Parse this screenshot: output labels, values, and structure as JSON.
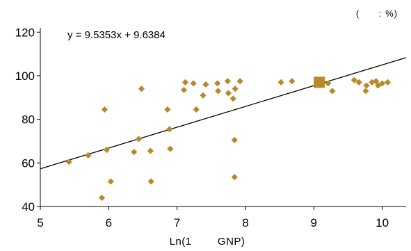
{
  "chart_data": {
    "type": "scatter",
    "title": "",
    "unit_label": "(      : %)",
    "xlabel": "Ln(1        GNP)",
    "ylabel": "",
    "xlim": [
      5,
      10.35
    ],
    "ylim": [
      40,
      122
    ],
    "x_ticks": [
      "5",
      "6",
      "7",
      "8",
      "9",
      "10"
    ],
    "y_ticks": [
      "40",
      "60",
      "80",
      "100",
      "120"
    ],
    "grid": false,
    "legend": "none",
    "marker_color": "#B8892A",
    "trendline": {
      "equation_label": "y = 9.5353x + 9.6384",
      "slope": 9.5353,
      "intercept": 9.6384,
      "x_range": [
        5,
        10.35
      ],
      "color": "#000000"
    },
    "series": [
      {
        "marker": "diamond",
        "points": [
          [
            5.42,
            60.5
          ],
          [
            5.7,
            63.5
          ],
          [
            5.9,
            44.0
          ],
          [
            5.94,
            84.5
          ],
          [
            5.97,
            66.0
          ],
          [
            6.03,
            51.5
          ],
          [
            6.37,
            65.0
          ],
          [
            6.44,
            71.0
          ],
          [
            6.48,
            94.0
          ],
          [
            6.61,
            65.5
          ],
          [
            6.62,
            51.5
          ],
          [
            6.86,
            84.5
          ],
          [
            6.89,
            75.5
          ],
          [
            6.9,
            66.5
          ],
          [
            7.12,
            97.0
          ],
          [
            7.1,
            93.5
          ],
          [
            7.24,
            96.5
          ],
          [
            7.28,
            84.5
          ],
          [
            7.38,
            91.0
          ],
          [
            7.42,
            96.0
          ],
          [
            7.59,
            96.5
          ],
          [
            7.6,
            93.0
          ],
          [
            7.74,
            97.5
          ],
          [
            7.75,
            92.0
          ],
          [
            7.82,
            89.5
          ],
          [
            7.85,
            94.0
          ],
          [
            7.92,
            97.5
          ],
          [
            7.84,
            70.5
          ],
          [
            7.84,
            53.5
          ],
          [
            8.52,
            97.0
          ],
          [
            8.68,
            97.5
          ],
          [
            9.21,
            96.5
          ],
          [
            9.27,
            93.0
          ],
          [
            9.59,
            98.0
          ],
          [
            9.66,
            97.0
          ],
          [
            9.76,
            93.0
          ],
          [
            9.77,
            95.5
          ],
          [
            9.85,
            97.0
          ],
          [
            9.91,
            97.5
          ],
          [
            9.94,
            95.5
          ],
          [
            10.0,
            96.5
          ],
          [
            10.08,
            97.0
          ]
        ]
      },
      {
        "marker": "square",
        "points": [
          [
            9.08,
            97.0
          ]
        ]
      }
    ]
  }
}
